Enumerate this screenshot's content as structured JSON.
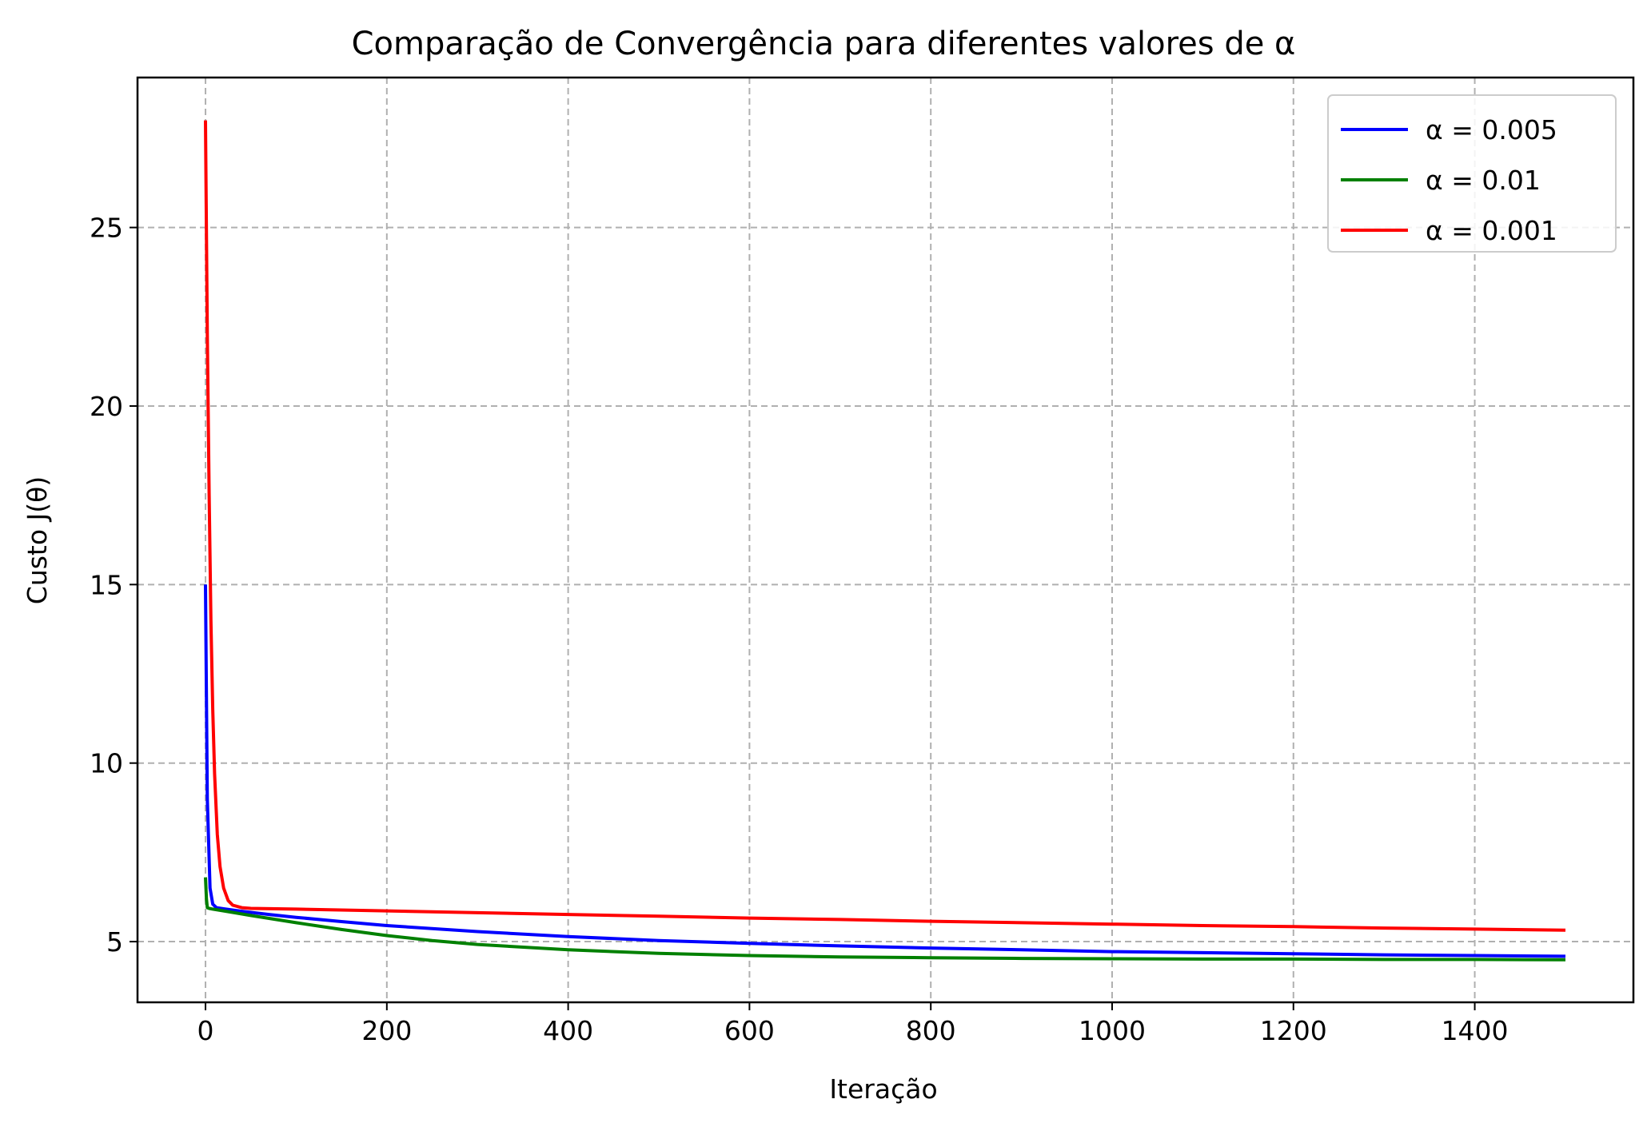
{
  "chart_data": {
    "type": "line",
    "title": "Comparação de Convergência para diferentes valores de α",
    "xlabel": "Iteração",
    "ylabel": "Custo J(θ)",
    "xlim": [
      -75,
      1575
    ],
    "ylim": [
      3.3,
      29.2
    ],
    "xticks": [
      0,
      200,
      400,
      600,
      800,
      1000,
      1200,
      1400
    ],
    "yticks": [
      5,
      10,
      15,
      20,
      25
    ],
    "grid": true,
    "legend_position": "top-right",
    "series": [
      {
        "name": "α = 0.005",
        "color": "#0000ff",
        "x": [
          0,
          2,
          5,
          8,
          12,
          20,
          40,
          70,
          100,
          150,
          200,
          300,
          400,
          500,
          600,
          700,
          800,
          900,
          1000,
          1100,
          1200,
          1300,
          1400,
          1500
        ],
        "y": [
          15.0,
          9.0,
          6.5,
          6.05,
          5.95,
          5.92,
          5.85,
          5.76,
          5.68,
          5.56,
          5.45,
          5.28,
          5.14,
          5.03,
          4.95,
          4.88,
          4.82,
          4.77,
          4.72,
          4.69,
          4.66,
          4.63,
          4.61,
          4.59
        ]
      },
      {
        "name": "α = 0.01",
        "color": "#008000",
        "x": [
          0,
          1,
          2,
          4,
          8,
          20,
          50,
          100,
          150,
          200,
          250,
          300,
          400,
          500,
          600,
          700,
          800,
          900,
          1000,
          1100,
          1200,
          1300,
          1400,
          1500
        ],
        "y": [
          6.8,
          6.2,
          5.95,
          5.93,
          5.91,
          5.86,
          5.73,
          5.53,
          5.34,
          5.17,
          5.03,
          4.92,
          4.77,
          4.67,
          4.61,
          4.57,
          4.55,
          4.53,
          4.52,
          4.51,
          4.51,
          4.5,
          4.5,
          4.49
        ]
      },
      {
        "name": "α = 0.001",
        "color": "#ff0000",
        "x": [
          0,
          2,
          4,
          6,
          8,
          10,
          13,
          16,
          20,
          25,
          30,
          40,
          50,
          100,
          200,
          300,
          400,
          500,
          600,
          700,
          800,
          900,
          1000,
          1100,
          1200,
          1300,
          1400,
          1500
        ],
        "y": [
          28.0,
          22.0,
          17.5,
          14.0,
          11.5,
          9.7,
          8.0,
          7.1,
          6.5,
          6.15,
          6.02,
          5.95,
          5.93,
          5.91,
          5.86,
          5.81,
          5.76,
          5.71,
          5.66,
          5.62,
          5.57,
          5.53,
          5.49,
          5.45,
          5.42,
          5.38,
          5.35,
          5.32
        ]
      }
    ]
  }
}
